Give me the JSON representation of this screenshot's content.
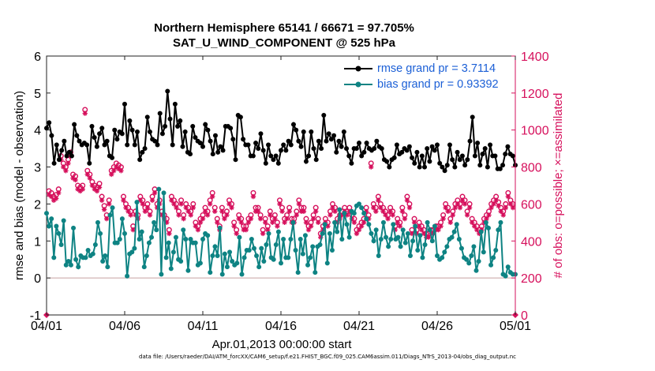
{
  "title_line1": "Northern Hemisphere 65141 / 66671 = 97.705%",
  "title_line2": "SAT_U_WIND_COMPONENT @ 525 hPa",
  "footer": "data file: /Users/raeder/DAI/ATM_forcXX/CAM6_setup/f.e21.FHIST_BGC.f09_025.CAM6assim.011/Diags_NTrS_2013-04/obs_diag_output.nc",
  "colors": {
    "rmse": "#000000",
    "bias": "#0e8383",
    "obs": "#d6105c",
    "zero_line": "#c8a0a0",
    "legend_text": "#1b5fd6"
  },
  "chart_data": {
    "type": "line",
    "xlabel": "Apr.01,2013 00:00:00 start",
    "ylabel_left": "rmse and bias (model - observation)",
    "ylabel_right": "# of obs: o=possible; ×=assimilated",
    "xlim": [
      0,
      30
    ],
    "ylim_left": [
      -1,
      6
    ],
    "ylim_right": [
      0,
      1400
    ],
    "x_ticks": [
      0,
      5,
      10,
      15,
      20,
      25,
      30
    ],
    "x_tick_labels": [
      "04/01",
      "04/06",
      "04/11",
      "04/16",
      "04/21",
      "04/26",
      "05/01"
    ],
    "y_left_ticks": [
      -1,
      0,
      1,
      2,
      3,
      4,
      5,
      6
    ],
    "y_right_ticks": [
      0,
      200,
      400,
      600,
      800,
      1000,
      1200,
      1400
    ],
    "legend": [
      {
        "name": "rmse grand pr = 3.7114",
        "series": "rmse"
      },
      {
        "name": "bias grand pr = 0.93392",
        "series": "bias"
      }
    ],
    "series": [
      {
        "name": "rmse",
        "axis": "left",
        "values": [
          4.05,
          4.2,
          3.85,
          3.1,
          3.6,
          3.2,
          3.45,
          3.7,
          3.3,
          3.4,
          3.3,
          4.15,
          3.85,
          3.7,
          3.6,
          3.65,
          3.6,
          3.1,
          4.1,
          3.8,
          3.55,
          3.9,
          4.05,
          3.6,
          3.7,
          3.3,
          3.25,
          4.0,
          3.75,
          3.95,
          3.9,
          4.7,
          3.6,
          4.25,
          4.0,
          3.6,
          3.95,
          3.2,
          3.4,
          3.5,
          4.35,
          3.95,
          3.75,
          3.7,
          3.6,
          4.45,
          3.9,
          4.1,
          5.05,
          4.3,
          3.6,
          4.7,
          4.1,
          4.25,
          3.55,
          3.95,
          3.4,
          3.35,
          4.1,
          3.8,
          3.7,
          3.65,
          3.55,
          4.15,
          4.0,
          3.7,
          3.35,
          3.85,
          3.4,
          3.55,
          3.45,
          4.1,
          4.1,
          4.05,
          3.75,
          3.2,
          4.4,
          4.35,
          3.75,
          3.6,
          3.6,
          3.3,
          3.3,
          3.65,
          3.5,
          3.9,
          3.45,
          3.1,
          3.6,
          3.3,
          3.2,
          3.3,
          3.1,
          3.45,
          3.6,
          3.45,
          3.7,
          3.6,
          4.15,
          4.0,
          3.7,
          3.55,
          3.95,
          3.15,
          3.3,
          3.95,
          3.5,
          3.2,
          3.7,
          3.5,
          4.4,
          3.7,
          3.9,
          3.75,
          3.85,
          3.4,
          3.7,
          3.55,
          3.95,
          3.5,
          3.3,
          3.1,
          3.5,
          3.5,
          3.65,
          3.3,
          3.4,
          3.65,
          3.5,
          3.45,
          3.5,
          3.7,
          3.55,
          3.5,
          3.2,
          3.15,
          3.0,
          3.2,
          3.25,
          3.6,
          3.35,
          3.4,
          3.5,
          3.45,
          3.55,
          3.25,
          3.1,
          3.4,
          3.0,
          3.3,
          3.0,
          3.5,
          3.15,
          3.55,
          3.45,
          3.6,
          3.1,
          3.0,
          2.9,
          3.05,
          3.6,
          3.2,
          3.0,
          3.4,
          3.2,
          3.3,
          3.05,
          3.2,
          3.7,
          4.35,
          3.3,
          3.65,
          3.05,
          3.35,
          3.5,
          3.0,
          3.6,
          3.3,
          3.3,
          2.95,
          2.95,
          3.05,
          3.35,
          3.55,
          3.35,
          3.3,
          3.05
        ]
      },
      {
        "name": "bias",
        "axis": "left",
        "values": [
          1.75,
          1.4,
          1.6,
          0.55,
          1.4,
          1.2,
          0.9,
          1.55,
          0.35,
          0.45,
          0.35,
          1.35,
          0.5,
          0.3,
          0.6,
          0.55,
          0.55,
          0.75,
          0.6,
          0.65,
          0.9,
          1.5,
          1.2,
          0.45,
          0.6,
          0.3,
          1.7,
          1.9,
          0.95,
          0.95,
          1.05,
          1.6,
          1.2,
          0.05,
          0.65,
          0.7,
          0.8,
          2.05,
          1.05,
          1.25,
          0.3,
          0.6,
          0.95,
          1.1,
          1.5,
          1.3,
          2.4,
          0.1,
          2.3,
          0.55,
          0.95,
          0.25,
          0.7,
          1.1,
          0.5,
          0.45,
          1.3,
          1.05,
          0.2,
          1.05,
          0.95,
          0.95,
          0.35,
          0.4,
          1.05,
          1.2,
          1.15,
          0.15,
          0.6,
          0.85,
          0.6,
          1.35,
          0.1,
          0.65,
          0.3,
          0.7,
          0.45,
          0.35,
          0.4,
          1.1,
          0.1,
          0.55,
          0.75,
          0.75,
          1.05,
          0.8,
          0.6,
          0.3,
          0.8,
          0.45,
          0.9,
          1.2,
          0.55,
          0.5,
          0.9,
          1.25,
          0.4,
          1.05,
          0.55,
          0.55,
          1.05,
          1.5,
          0.75,
          0.15,
          1.05,
          0.65,
          1.15,
          0.35,
          0.55,
          0.85,
          0.15,
          0.85,
          0.9,
          1.2,
          1.45,
          0.4,
          1.2,
          0.75,
          1.5,
          1.25,
          1.85,
          1.05,
          1.75,
          1.45,
          1.1,
          1.8,
          1.75,
          1.95,
          2.0,
          1.9,
          1.75,
          1.6,
          1.45,
          1.2,
          1.0,
          1.3,
          0.6,
          1.05,
          1.5,
          1.1,
          0.85,
          1.05,
          1.45,
          1.05,
          1.1,
          0.85,
          1.3,
          0.95,
          1.2,
          0.6,
          1.0,
          1.4,
          0.75,
          1.15,
          0.55,
          0.9,
          1.5,
          1.3,
          1.0,
          1.4,
          0.6,
          0.5,
          0.55,
          0.7,
          0.85,
          1.05,
          1.1,
          1.25,
          1.45,
          1.05,
          0.8,
          0.55,
          0.5,
          0.4,
          0.6,
          0.85,
          0.2,
          0.45,
          1.25,
          0.7,
          1.5,
          1.35,
          0.35,
          0.55,
          0.75,
          1.3,
          1.5,
          0.1,
          0.05,
          0.3,
          0.15,
          0.1,
          0.1
        ]
      },
      {
        "name": "obs_possible",
        "axis": "right",
        "values": [
          0,
          670,
          660,
          640,
          650,
          680,
          860,
          820,
          800,
          840,
          880,
          760,
          750,
          700,
          690,
          700,
          1110,
          780,
          760,
          720,
          700,
          690,
          710,
          640,
          590,
          540,
          620,
          780,
          800,
          820,
          810,
          800,
          640,
          600,
          580,
          560,
          480,
          560,
          540,
          640,
          620,
          580,
          600,
          560,
          640,
          680,
          600,
          620,
          560,
          540,
          520,
          460,
          640,
          620,
          600,
          560,
          620,
          540,
          600,
          580,
          560,
          600,
          500,
          480,
          520,
          540,
          580,
          560,
          620,
          660,
          580,
          520,
          480,
          580,
          540,
          560,
          620,
          600,
          500,
          460,
          540,
          520,
          480,
          480,
          520,
          540,
          660,
          580,
          580,
          540,
          460,
          520,
          480,
          560,
          520,
          540,
          500,
          620,
          580,
          520,
          540,
          580,
          520,
          520,
          560,
          620,
          580,
          580,
          520,
          480,
          500,
          540,
          580,
          520,
          440,
          480,
          520,
          500,
          560,
          600,
          580,
          520,
          540,
          560,
          580,
          560,
          580,
          540,
          520,
          460,
          480,
          500,
          520,
          580,
          540,
          820,
          600,
          580,
          640,
          600,
          580,
          560,
          540,
          580,
          560,
          480,
          520,
          500,
          580,
          540,
          640,
          600,
          460,
          520,
          460,
          500,
          480,
          460,
          440,
          440,
          460,
          460,
          480,
          480,
          500,
          540,
          600,
          580,
          520,
          560,
          600,
          620,
          600,
          640,
          620,
          560,
          600,
          520,
          500,
          480,
          460,
          480,
          520,
          540,
          560,
          600,
          620,
          640,
          610,
          580,
          560,
          600,
          660,
          620,
          600,
          0
        ]
      },
      {
        "name": "obs_assimilated",
        "axis": "right",
        "values": [
          0,
          650,
          640,
          620,
          630,
          660,
          840,
          800,
          780,
          820,
          860,
          740,
          730,
          680,
          670,
          680,
          1090,
          760,
          740,
          700,
          680,
          670,
          690,
          620,
          570,
          520,
          600,
          760,
          780,
          800,
          790,
          780,
          620,
          580,
          560,
          540,
          460,
          540,
          520,
          620,
          600,
          560,
          580,
          540,
          620,
          660,
          580,
          600,
          540,
          520,
          500,
          440,
          620,
          600,
          580,
          540,
          600,
          520,
          580,
          560,
          540,
          580,
          480,
          460,
          500,
          520,
          560,
          540,
          600,
          640,
          560,
          500,
          460,
          560,
          520,
          540,
          600,
          580,
          480,
          440,
          520,
          500,
          460,
          460,
          500,
          520,
          640,
          560,
          560,
          520,
          440,
          500,
          460,
          540,
          500,
          520,
          480,
          600,
          560,
          500,
          520,
          560,
          500,
          500,
          540,
          600,
          560,
          560,
          500,
          460,
          480,
          520,
          560,
          500,
          420,
          460,
          500,
          480,
          540,
          580,
          560,
          500,
          520,
          540,
          560,
          540,
          560,
          520,
          500,
          440,
          460,
          480,
          500,
          560,
          520,
          800,
          580,
          560,
          620,
          580,
          560,
          540,
          520,
          560,
          540,
          460,
          500,
          480,
          560,
          520,
          620,
          580,
          440,
          500,
          440,
          480,
          460,
          440,
          420,
          420,
          440,
          440,
          460,
          460,
          480,
          520,
          580,
          560,
          500,
          540,
          580,
          600,
          580,
          620,
          600,
          540,
          580,
          500,
          480,
          460,
          440,
          460,
          500,
          520,
          540,
          580,
          600,
          620,
          590,
          560,
          540,
          580,
          640,
          600,
          580,
          0
        ]
      }
    ]
  }
}
